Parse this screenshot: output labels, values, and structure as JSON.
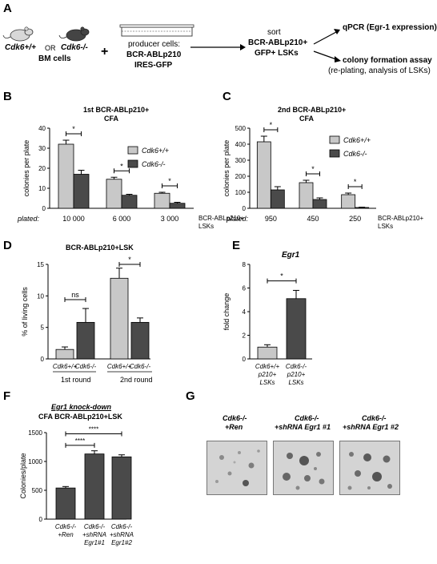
{
  "panelA": {
    "letter": "A",
    "cdk6wt": "Cdk6+/+",
    "or_text": "OR",
    "cdk6ko": "Cdk6-/-",
    "plus": "+",
    "bm_cells": "BM cells",
    "producer_line1": "producer cells:",
    "producer_line2": "BCR-ABLp210",
    "producer_line3": "IRES-GFP",
    "sort_line1": "sort",
    "sort_line2": "BCR-ABLp210+",
    "sort_line3": "GFP+ LSKs",
    "qpcr": "qPCR (Egr-1 expression)",
    "cfa_line1": "colony formation assay",
    "cfa_line2": "(re-plating, analysis of LSKs)"
  },
  "panelB": {
    "letter": "B",
    "title1": "1st BCR-ABLp210+",
    "title2": "CFA",
    "legend": [
      "Cdk6+/+",
      "Cdk6-/-"
    ],
    "plated_label": "plated:",
    "xcat_suffix1": "BCR-ABLp210+",
    "xcat_suffix2": "LSKs",
    "sig": [
      "*",
      "*",
      "*"
    ]
  },
  "panelC": {
    "letter": "C",
    "title1": "2nd BCR-ABLp210+",
    "title2": "CFA",
    "legend": [
      "Cdk6+/+",
      "Cdk6-/-"
    ],
    "plated_label": "plated:",
    "xcat_suffix1": "BCR-ABLp210+",
    "xcat_suffix2": "LSKs",
    "sig": [
      "*",
      "*",
      "*"
    ]
  },
  "panelD": {
    "letter": "D",
    "title": "BCR-ABLp210+LSK",
    "round1": "1st round",
    "round2": "2nd round",
    "sig": [
      "ns",
      "*"
    ]
  },
  "panelE": {
    "letter": "E",
    "title": "Egr1",
    "sig": "*"
  },
  "panelF": {
    "letter": "F",
    "title1": "Egr1 knock-down",
    "title2": "CFA BCR-ABLp210+LSK",
    "sig": [
      "****",
      "****"
    ]
  },
  "panelG": {
    "letter": "G",
    "labels": [
      [
        "Cdk6-/-",
        "+Ren"
      ],
      [
        "Cdk6-/-",
        "+shRNA Egr1 #1"
      ],
      [
        "Cdk6-/-",
        "+shRNA Egr1 #2"
      ]
    ]
  },
  "colors": {
    "light": "#c8c8c8",
    "dark": "#4a4a4a"
  },
  "chart_data": [
    {
      "panel": "B",
      "type": "bar",
      "categories": [
        "10 000",
        "6 000",
        "3 000"
      ],
      "series": [
        {
          "name": "Cdk6+/+",
          "values": [
            32,
            14.5,
            7.5
          ],
          "errors": [
            2,
            1,
            0.5
          ]
        },
        {
          "name": "Cdk6-/-",
          "values": [
            17,
            6.5,
            2.5
          ],
          "errors": [
            2,
            0.5,
            0.5
          ]
        }
      ],
      "ylabel": "colonies per plate",
      "ylim": [
        0,
        40
      ],
      "yticks": [
        0,
        10,
        20,
        30,
        40
      ]
    },
    {
      "panel": "C",
      "type": "bar",
      "categories": [
        "950",
        "450",
        "250"
      ],
      "series": [
        {
          "name": "Cdk6+/+",
          "values": [
            415,
            160,
            85
          ],
          "errors": [
            35,
            15,
            10
          ]
        },
        {
          "name": "Cdk6-/-",
          "values": [
            115,
            55,
            5
          ],
          "errors": [
            20,
            10,
            2
          ]
        }
      ],
      "ylabel": "colonies per plate",
      "ylim": [
        0,
        500
      ],
      "yticks": [
        0,
        100,
        200,
        300,
        400,
        500
      ]
    },
    {
      "panel": "D",
      "type": "bar",
      "categories": [
        "Cdk6+/+",
        "Cdk6-/-",
        "Cdk6+/+",
        "Cdk6-/-"
      ],
      "values": [
        1.5,
        5.8,
        12.8,
        5.8
      ],
      "errors": [
        0.4,
        2.2,
        1.6,
        0.7
      ],
      "ylabel": "% of living cells",
      "ylim": [
        0,
        15
      ],
      "yticks": [
        0,
        5,
        10,
        15
      ]
    },
    {
      "panel": "E",
      "type": "bar",
      "categories": [
        "Cdk6+/+ p210+ LSKs",
        "Cdk6-/- p210+ LSKs"
      ],
      "values": [
        1.0,
        5.1
      ],
      "errors": [
        0.2,
        0.7
      ],
      "ylabel": "fold change",
      "ylim": [
        0,
        8
      ],
      "yticks": [
        0,
        2,
        4,
        6,
        8
      ]
    },
    {
      "panel": "F",
      "type": "bar",
      "categories": [
        "Cdk6-/- +Ren",
        "Cdk6-/- +shRNA Egr1#1",
        "Cdk6-/- +shRNA Egr1#2"
      ],
      "values": [
        540,
        1130,
        1080
      ],
      "errors": [
        25,
        55,
        35
      ],
      "ylabel": "Colonies/plate",
      "ylim": [
        0,
        1500
      ],
      "yticks": [
        0,
        500,
        1000,
        1500
      ]
    }
  ]
}
